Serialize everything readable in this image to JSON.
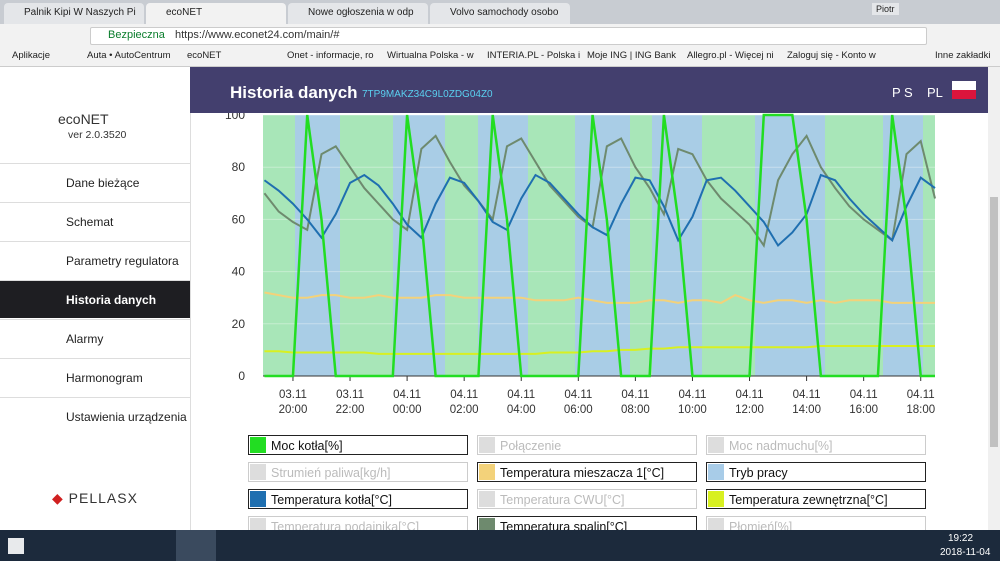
{
  "browser": {
    "tabs": [
      "Palnik Kipi W Naszych Pi",
      "ecoNET",
      "Nowe ogłoszenia w odp",
      "Volvo samochody osobo"
    ],
    "user": "Piotr",
    "secure": "Bezpieczna",
    "url": "https://www.econet24.com/main/#",
    "bookmarks": [
      "Aplikacje",
      "Auta • AutoCentrum",
      "ecoNET",
      "Onet - informacje, ro",
      "Wirtualna Polska - w",
      "INTERIA.PL - Polska i",
      "Moje ING | ING Bank",
      "Allegro.pl - Więcej ni",
      "Zaloguj się - Konto w",
      "Inne zakładki"
    ]
  },
  "sidebar": {
    "logo": "ecoNET",
    "version": "ver 2.0.3520",
    "menu": [
      "Dane bieżące",
      "Schemat",
      "Parametry regulatora",
      "Historia danych",
      "Alarmy",
      "Harmonogram",
      "Ustawienia urządzenia"
    ],
    "brand": "PELLASX"
  },
  "header": {
    "title": "Historia danych",
    "device": "7TP9MAKZ34C9L0ZDG04Z0",
    "user": "P S",
    "lang": "PL"
  },
  "chart_data": {
    "type": "line",
    "xlim": [
      -1.05,
      22.5
    ],
    "ylim": [
      0,
      100
    ],
    "yticks": [
      0,
      20,
      40,
      60,
      80,
      100
    ],
    "xticks": [
      {
        "value": 0,
        "label": "03.11\n20:00"
      },
      {
        "value": 2,
        "label": "03.11\n22:00"
      },
      {
        "value": 4,
        "label": "04.11\n00:00"
      },
      {
        "value": 6,
        "label": "04.11\n02:00"
      },
      {
        "value": 8,
        "label": "04.11\n04:00"
      },
      {
        "value": 10,
        "label": "04.11\n06:00"
      },
      {
        "value": 12,
        "label": "04.11\n08:00"
      },
      {
        "value": 14,
        "label": "04.11\n10:00"
      },
      {
        "value": 16,
        "label": "04.11\n12:00"
      },
      {
        "value": 18,
        "label": "04.11\n14:00"
      },
      {
        "value": 20,
        "label": "04.11\n16:00"
      },
      {
        "value": 22,
        "label": "04.11\n18:00"
      }
    ],
    "x": [
      -1,
      -0.5,
      0,
      0.5,
      1,
      1.5,
      2,
      2.5,
      3,
      3.5,
      4,
      4.5,
      5,
      5.5,
      6,
      6.5,
      7,
      7.5,
      8,
      8.5,
      9,
      9.5,
      10,
      10.5,
      11,
      11.5,
      12,
      12.5,
      13,
      13.5,
      14,
      14.5,
      15,
      15.5,
      16,
      16.5,
      17,
      17.5,
      18,
      18.5,
      19,
      19.5,
      20,
      20.5,
      21,
      21.5,
      22,
      22.5
    ],
    "series": [
      {
        "name": "Moc kotła[%]",
        "color": "#22dd22",
        "active": true,
        "values": [
          0,
          0,
          0,
          100,
          60,
          0,
          0,
          0,
          0,
          0,
          100,
          60,
          0,
          0,
          0,
          0,
          100,
          60,
          0,
          0,
          0,
          0,
          0,
          100,
          60,
          0,
          0,
          0,
          100,
          60,
          0,
          0,
          0,
          0,
          0,
          100,
          100,
          100,
          60,
          0,
          0,
          0,
          0,
          0,
          100,
          60,
          0,
          0
        ]
      },
      {
        "name": "Połączenie",
        "color": "#dddddd",
        "active": false
      },
      {
        "name": "Moc nadmuchu[%]",
        "color": "#dddddd",
        "active": false
      },
      {
        "name": "Strumień paliwa[kg/h]",
        "color": "#dddddd",
        "active": false
      },
      {
        "name": "Temperatura mieszacza 1[°C]",
        "color": "#f3d27a",
        "active": true,
        "values": [
          32,
          31,
          30,
          30,
          31,
          31,
          30,
          30,
          31,
          30,
          30,
          30,
          31,
          31,
          30,
          30,
          30,
          30,
          30,
          29,
          29,
          29,
          30,
          29,
          28,
          28,
          28,
          29,
          29,
          28,
          29,
          29,
          28,
          31,
          29,
          28,
          29,
          29,
          28,
          29,
          28,
          29,
          29,
          29,
          28,
          28,
          28,
          28
        ]
      },
      {
        "name": "Tryb pracy",
        "color": "#a8cce8",
        "active": true
      },
      {
        "name": "Temperatura kotła[°C]",
        "color": "#1f6fb0",
        "active": true,
        "values": [
          75,
          71,
          66,
          60,
          53,
          62,
          74,
          77,
          73,
          66,
          58,
          53,
          66,
          76,
          74,
          67,
          59,
          56,
          68,
          77,
          74,
          68,
          62,
          57,
          54,
          66,
          76,
          75,
          65,
          52,
          61,
          75,
          76,
          71,
          65,
          59,
          50,
          55,
          62,
          77,
          75,
          68,
          62,
          57,
          52,
          65,
          76,
          72
        ]
      },
      {
        "name": "Temperatura CWU[°C]",
        "color": "#dddddd",
        "active": false
      },
      {
        "name": "Temperatura zewnętrzna[°C]",
        "color": "#d8f020",
        "active": true,
        "values": [
          9.5,
          9.5,
          9,
          9,
          9,
          9,
          9,
          9,
          8.5,
          8.5,
          8.5,
          8.5,
          8.5,
          8.5,
          8.5,
          8.5,
          8.5,
          8.5,
          8.5,
          8.5,
          9,
          9,
          9,
          9.5,
          9.5,
          10,
          10,
          10.5,
          10.5,
          11,
          11,
          11,
          11,
          11,
          11,
          11,
          11,
          11,
          11,
          11.5,
          11.5,
          11.5,
          11.5,
          11.5,
          11.5,
          11.5,
          11.5,
          11.5
        ]
      },
      {
        "name": "Temperatura podajnika[°C]",
        "color": "#dddddd",
        "active": false
      },
      {
        "name": "Temperatura spalin[°C]",
        "color": "#6e8a6e",
        "active": true,
        "values": [
          70,
          63,
          59,
          56,
          85,
          88,
          80,
          72,
          66,
          60,
          56,
          87,
          92,
          82,
          73,
          67,
          60,
          88,
          91,
          82,
          73,
          67,
          61,
          57,
          88,
          91,
          80,
          72,
          62,
          87,
          85,
          75,
          68,
          63,
          58,
          50,
          75,
          85,
          92,
          80,
          72,
          65,
          60,
          56,
          52,
          85,
          90,
          68
        ]
      },
      {
        "name": "Płomień[%]",
        "color": "#dddddd",
        "active": false
      }
    ]
  },
  "taskbar": {
    "time": "19:22",
    "date": "2018-11-04"
  }
}
